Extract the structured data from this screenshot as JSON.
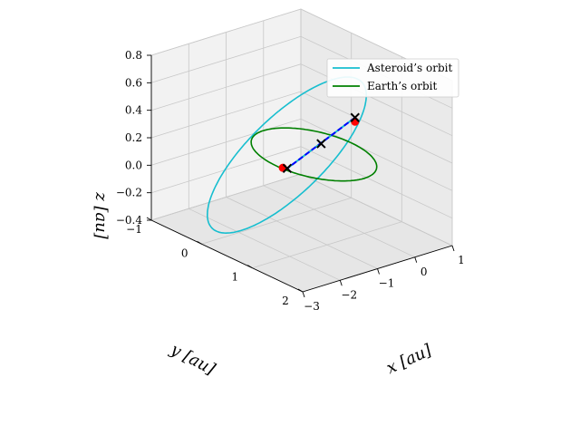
{
  "chart_data": {
    "type": "line",
    "projection": "3d",
    "title": "",
    "legend": {
      "placement": "top-right",
      "entries": [
        "Asteroid’s orbit",
        "Earth’s orbit"
      ]
    },
    "axes": {
      "x": {
        "label": "x [au]",
        "range": [
          -3,
          1
        ],
        "ticks": [
          "−3",
          "−2",
          "−1",
          "0",
          "1"
        ]
      },
      "y": {
        "label": "y [au]",
        "range": [
          -1,
          2
        ],
        "ticks": [
          "−1",
          "0",
          "1",
          "2"
        ]
      },
      "z": {
        "label": "z [au]",
        "range": [
          -0.4,
          0.8
        ],
        "ticks": [
          "−0.4",
          "−0.2",
          "0.0",
          "0.2",
          "0.4",
          "0.6",
          "0.8"
        ]
      }
    },
    "grid": true,
    "series": [
      {
        "name": "Asteroid’s orbit",
        "kind": "ellipse",
        "color": "#17becf",
        "center": [
          -1.4,
          0.5,
          0.2
        ],
        "axis_u": [
          1.6,
          -1.35,
          -0.05
        ],
        "axis_v": [
          0.9,
          0.9,
          0.55
        ]
      },
      {
        "name": "Earth’s orbit",
        "kind": "circle",
        "color": "#008000",
        "center": [
          0.0,
          0.0,
          0.0
        ],
        "axis_u": [
          1.0,
          0.0,
          0.0
        ],
        "axis_v": [
          0.0,
          1.0,
          0.0
        ]
      }
    ],
    "line": {
      "style": "dashed",
      "color": "#0000ff",
      "underlay_color": "#17becf",
      "from": [
        -1.6,
        2.0,
        0.75
      ],
      "to": [
        0.5,
        -0.9,
        -0.3
      ]
    },
    "markers": [
      {
        "symbol": "x",
        "color": "#000000",
        "position": [
          -1.6,
          2.0,
          0.75
        ]
      },
      {
        "symbol": "x",
        "color": "#000000",
        "position": [
          -0.55,
          0.55,
          0.22
        ]
      },
      {
        "symbol": "x",
        "color": "#000000",
        "position": [
          0.5,
          -0.9,
          -0.3
        ]
      },
      {
        "symbol": "o",
        "color": "#ff0000",
        "position": [
          -1.6,
          2.0,
          0.72
        ]
      },
      {
        "symbol": "o",
        "color": "#ff0000",
        "position": [
          0.45,
          -0.95,
          -0.3
        ]
      }
    ]
  }
}
